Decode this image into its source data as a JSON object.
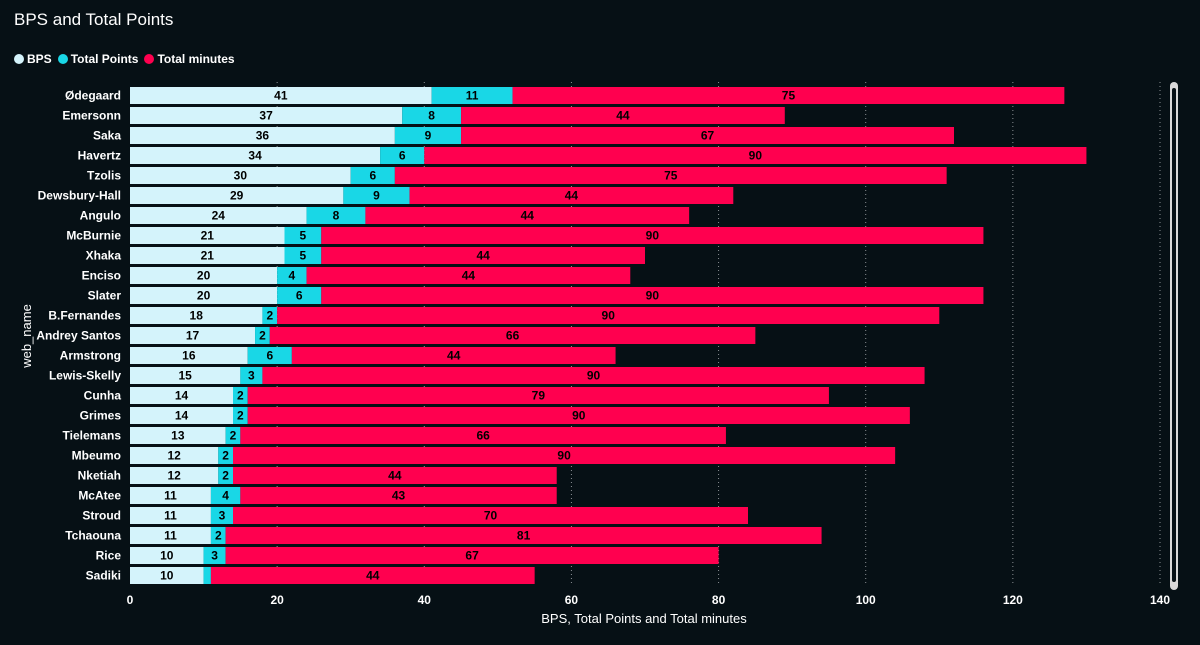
{
  "title": "BPS and Total Points",
  "colors": {
    "background": "#061015",
    "text": "#ffffff",
    "grid": "#8a8f94",
    "bps": "#d4f3fb",
    "total_points": "#19d7e6",
    "total_minutes": "#ff004f"
  },
  "chart_data": {
    "type": "bar",
    "orientation": "horizontal",
    "stacked": true,
    "title": "BPS and Total Points",
    "xlabel": "BPS, Total Points and Total minutes",
    "ylabel": "web_name",
    "xlim": [
      0,
      140
    ],
    "xticks": [
      0,
      20,
      40,
      60,
      80,
      100,
      120,
      140
    ],
    "grid": "vertical-dotted",
    "legend_position": "top-left",
    "categories": [
      "Ødegaard",
      "Emersonn",
      "Saka",
      "Havertz",
      "Tzolis",
      "Dewsbury-Hall",
      "Angulo",
      "McBurnie",
      "Xhaka",
      "Enciso",
      "Slater",
      "B.Fernandes",
      "Andrey Santos",
      "Armstrong",
      "Lewis-Skelly",
      "Cunha",
      "Grimes",
      "Tielemans",
      "Mbeumo",
      "Nketiah",
      "McAtee",
      "Stroud",
      "Tchaouna",
      "Rice",
      "Sadiki"
    ],
    "series": [
      {
        "name": "BPS",
        "values": [
          41,
          37,
          36,
          34,
          30,
          29,
          24,
          21,
          21,
          20,
          20,
          18,
          17,
          16,
          15,
          14,
          14,
          13,
          12,
          12,
          11,
          11,
          11,
          10,
          10
        ]
      },
      {
        "name": "Total Points",
        "values": [
          11,
          8,
          9,
          6,
          6,
          9,
          8,
          5,
          5,
          4,
          6,
          2,
          2,
          6,
          3,
          2,
          2,
          2,
          2,
          2,
          4,
          3,
          2,
          3,
          1
        ]
      },
      {
        "name": "Total minutes",
        "values": [
          75,
          44,
          67,
          90,
          75,
          44,
          44,
          90,
          44,
          44,
          90,
          90,
          66,
          44,
          90,
          79,
          90,
          66,
          90,
          44,
          43,
          70,
          81,
          67,
          44
        ]
      }
    ],
    "data_labels": [
      [
        "41",
        "11",
        "75"
      ],
      [
        "37",
        "8",
        "44"
      ],
      [
        "36",
        "9",
        "67"
      ],
      [
        "34",
        "6",
        "90"
      ],
      [
        "30",
        "6",
        "75"
      ],
      [
        "29",
        "9",
        "44"
      ],
      [
        "24",
        "8",
        "44"
      ],
      [
        "21",
        "5",
        "90"
      ],
      [
        "21",
        "5",
        "44"
      ],
      [
        "20",
        "4",
        "44"
      ],
      [
        "20",
        "6",
        "90"
      ],
      [
        "18",
        "2",
        "90"
      ],
      [
        "17",
        "2",
        "66"
      ],
      [
        "16",
        "6",
        "44"
      ],
      [
        "15",
        "3",
        "90"
      ],
      [
        "14",
        "2",
        "79"
      ],
      [
        "14",
        "2",
        "90"
      ],
      [
        "13",
        "2",
        "66"
      ],
      [
        "12",
        "2",
        "90"
      ],
      [
        "12",
        "2",
        "44"
      ],
      [
        "11",
        "4",
        "43"
      ],
      [
        "11",
        "3",
        "70"
      ],
      [
        "11",
        "2",
        "81"
      ],
      [
        "10",
        "3",
        "67"
      ],
      [
        "10",
        "",
        "44"
      ]
    ]
  }
}
